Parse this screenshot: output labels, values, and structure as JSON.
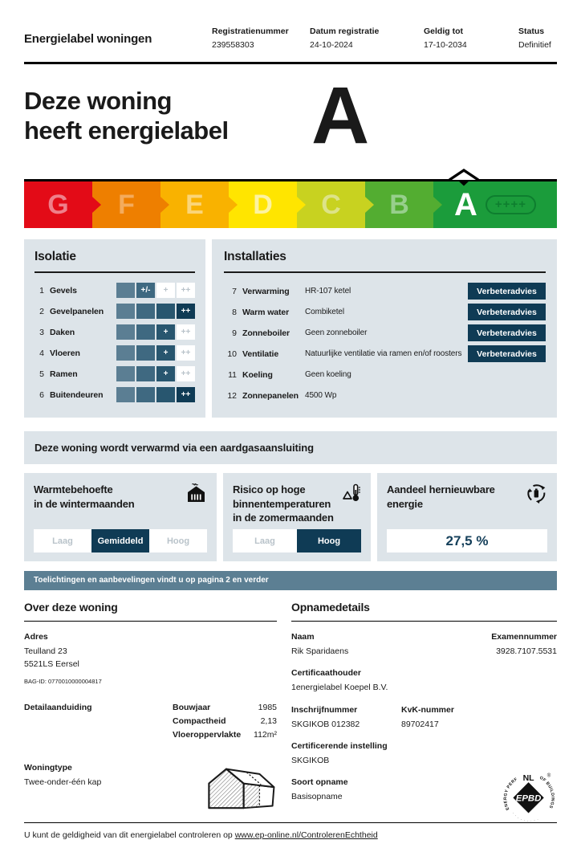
{
  "header": {
    "title": "Energielabel woningen",
    "fields": [
      {
        "label": "Registratienummer",
        "value": "239558303"
      },
      {
        "label": "Datum registratie",
        "value": "24-10-2024"
      },
      {
        "label": "Geldig tot",
        "value": "17-10-2034"
      },
      {
        "label": "Status",
        "value": "Definitief"
      }
    ]
  },
  "hero": {
    "line1": "Deze woning",
    "line2": "heeft energielabel",
    "label": "A"
  },
  "energy_scale": {
    "plus": "++++",
    "segments": [
      {
        "letter": "G",
        "color": "#e30b17",
        "letter_color": "#ef7f8a"
      },
      {
        "letter": "F",
        "color": "#ee7f00",
        "letter_color": "#f4ab5c"
      },
      {
        "letter": "E",
        "color": "#f9b200",
        "letter_color": "#fbd578"
      },
      {
        "letter": "D",
        "color": "#ffe500",
        "letter_color": "#fdf3a1"
      },
      {
        "letter": "C",
        "color": "#c8d220",
        "letter_color": "#dde388"
      },
      {
        "letter": "B",
        "color": "#53ad31",
        "letter_color": "#97cf8c"
      },
      {
        "letter": "A",
        "color": "#1b9c3b",
        "letter_color": "#ffffff",
        "current": true
      }
    ]
  },
  "isolatie": {
    "title": "Isolatie",
    "scale_labels": [
      "",
      "+/-",
      "+",
      "++"
    ],
    "cell_colors": [
      "#5b7e93",
      "#3f6981",
      "#28566f",
      "#0f3b55"
    ],
    "rows": [
      {
        "num": "1",
        "label": "Gevels",
        "level": 2
      },
      {
        "num": "2",
        "label": "Gevelpanelen",
        "level": 4
      },
      {
        "num": "3",
        "label": "Daken",
        "level": 3
      },
      {
        "num": "4",
        "label": "Vloeren",
        "level": 3
      },
      {
        "num": "5",
        "label": "Ramen",
        "level": 3
      },
      {
        "num": "6",
        "label": "Buitendeuren",
        "level": 4
      }
    ]
  },
  "installaties": {
    "title": "Installaties",
    "advice_label": "Verbeteradvies",
    "rows": [
      {
        "num": "7",
        "label": "Verwarming",
        "value": "HR-107 ketel"
      },
      {
        "num": "8",
        "label": "Warm water",
        "value": "Combiketel"
      },
      {
        "num": "9",
        "label": "Zonneboiler",
        "value": "Geen zonneboiler"
      },
      {
        "num": "10",
        "label": "Ventilatie",
        "value": "Natuurlijke ventilatie via ramen en/of roosters"
      },
      {
        "num": "11",
        "label": "Koeling",
        "value": "Geen koeling"
      },
      {
        "num": "12",
        "label": "Zonnepanelen",
        "value": "4500 Wp"
      }
    ]
  },
  "heating_banner": "Deze woning wordt verwarmd via een aardgasaansluiting",
  "cards": {
    "warmte": {
      "title_line1": "Warmtebehoefte",
      "title_line2": "in de wintermaanden",
      "options": [
        "Laag",
        "Gemiddeld",
        "Hoog"
      ],
      "selected": "Gemiddeld"
    },
    "risico": {
      "title_line1": "Risico op hoge",
      "title_line2": "binnentemperaturen",
      "title_line3": "in de zomermaanden",
      "options": [
        "Laag",
        "Hoog"
      ],
      "selected": "Hoog"
    },
    "hernieuwbaar": {
      "title_line1": "Aandeel hernieuwbare",
      "title_line2": "energie",
      "value": "27,5 %"
    }
  },
  "notice": "Toelichtingen en aanbevelingen vindt u op pagina 2 en verder",
  "over_woning": {
    "title": "Over deze woning",
    "adres_label": "Adres",
    "adres_line1": "Teulland 23",
    "adres_line2": "5521LS Eersel",
    "bag_id": "BAG-ID: 0770010000004817",
    "detail_label": "Detailaanduiding",
    "details": [
      {
        "label": "Bouwjaar",
        "value": "1985"
      },
      {
        "label": "Compactheid",
        "value": "2,13"
      },
      {
        "label": "Vloeroppervlakte",
        "value": "112m²"
      }
    ],
    "woningtype_label": "Woningtype",
    "woningtype_value": "Twee-onder-één kap"
  },
  "opnamedetails": {
    "title": "Opnamedetails",
    "naam_label": "Naam",
    "naam": "Rik Sparidaens",
    "examen_label": "Examennummer",
    "examen": "3928.7107.5531",
    "cert_label": "Certificaathouder",
    "cert": "1energielabel Koepel B.V.",
    "inschrijf_label": "Inschrijfnummer",
    "inschrijf": "SKGIKOB 012382",
    "kvk_label": "KvK-nummer",
    "kvk": "89702417",
    "instelling_label": "Certificerende instelling",
    "instelling": "SKGIKOB",
    "soort_label": "Soort opname",
    "soort": "Basisopname",
    "logo_text": "EPBD",
    "logo_country": "NL"
  },
  "footer": {
    "text": "U kunt de geldigheid van dit energielabel controleren op ",
    "link": "www.ep-online.nl/ControlerenEchtheid"
  }
}
